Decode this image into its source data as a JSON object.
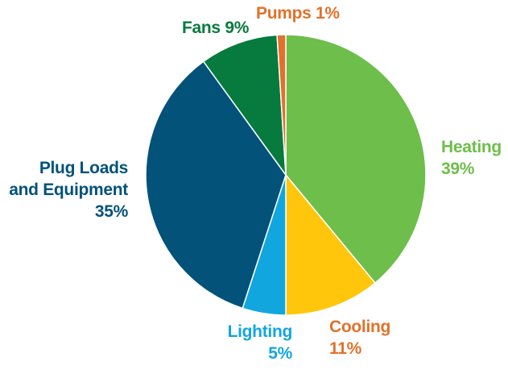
{
  "chart_data": {
    "type": "pie",
    "title": "",
    "slices": [
      {
        "label": "Heating",
        "value": 39,
        "value_label": "39%",
        "color": "#6dbe4b"
      },
      {
        "label": "Cooling",
        "value": 11,
        "value_label": "11%",
        "color": "#ffc60b"
      },
      {
        "label": "Lighting",
        "value": 5,
        "value_label": "5%",
        "color": "#12a6df"
      },
      {
        "label": "Plug Loads and Equipment",
        "value": 35,
        "value_label": "35%",
        "color": "#02527a"
      },
      {
        "label": "Fans",
        "value": 9,
        "value_label": "9%",
        "color": "#077a3d"
      },
      {
        "label": "Pumps",
        "value": 1,
        "value_label": "1%",
        "color": "#e2712b"
      }
    ],
    "labels": {
      "heating": {
        "line1": "Heating",
        "line2": "39%"
      },
      "cooling": {
        "line1": "Cooling",
        "line2": "11%"
      },
      "lighting": {
        "line1": "Lighting",
        "line2": "5%"
      },
      "plug": {
        "line1": "Plug Loads",
        "line2": "and Equipment",
        "line3": "35%"
      },
      "fans": {
        "line1": "Fans 9%"
      },
      "pumps": {
        "line1": "Pumps 1%"
      }
    }
  }
}
